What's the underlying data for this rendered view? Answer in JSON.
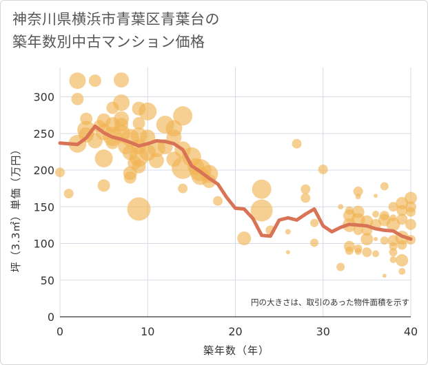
{
  "title": {
    "line1": "神奈川県横浜市青葉区青葉台の",
    "line2": "築年数別中古マンション価格"
  },
  "note": "円の大きさは、取引のあった物件面積を示す",
  "colors": {
    "bubble": "#f0b350",
    "line": "#d97356",
    "grid": "#d5dbe4",
    "axis": "#333333"
  },
  "chart_data": {
    "type": "scatter",
    "xlabel": "築年数（年）",
    "ylabel": "坪（3.3㎡）単価（万円）",
    "xlim": [
      0,
      40
    ],
    "ylim": [
      0,
      340
    ],
    "xticks": [
      "0",
      "10",
      "20",
      "30",
      "40"
    ],
    "yticks": [
      "0",
      "50",
      "100",
      "150",
      "200",
      "250",
      "300"
    ],
    "grid": true,
    "bubbles": [
      {
        "x": 0,
        "y": 197,
        "s": 7
      },
      {
        "x": 1,
        "y": 168,
        "s": 7
      },
      {
        "x": 2,
        "y": 322,
        "s": 12
      },
      {
        "x": 2,
        "y": 297,
        "s": 9
      },
      {
        "x": 2,
        "y": 236,
        "s": 13
      },
      {
        "x": 3,
        "y": 255,
        "s": 13
      },
      {
        "x": 3,
        "y": 248,
        "s": 11
      },
      {
        "x": 3,
        "y": 270,
        "s": 9
      },
      {
        "x": 4,
        "y": 322,
        "s": 9
      },
      {
        "x": 4,
        "y": 240,
        "s": 11
      },
      {
        "x": 4.5,
        "y": 260,
        "s": 9
      },
      {
        "x": 5,
        "y": 268,
        "s": 10
      },
      {
        "x": 5,
        "y": 252,
        "s": 12
      },
      {
        "x": 5,
        "y": 216,
        "s": 13
      },
      {
        "x": 5,
        "y": 179,
        "s": 9
      },
      {
        "x": 6,
        "y": 285,
        "s": 9
      },
      {
        "x": 6,
        "y": 262,
        "s": 11
      },
      {
        "x": 6,
        "y": 246,
        "s": 14
      },
      {
        "x": 6,
        "y": 238,
        "s": 10
      },
      {
        "x": 7,
        "y": 323,
        "s": 11
      },
      {
        "x": 7,
        "y": 292,
        "s": 12
      },
      {
        "x": 7,
        "y": 270,
        "s": 11
      },
      {
        "x": 7,
        "y": 262,
        "s": 10
      },
      {
        "x": 7,
        "y": 250,
        "s": 13
      },
      {
        "x": 7.5,
        "y": 232,
        "s": 11
      },
      {
        "x": 8,
        "y": 244,
        "s": 13
      },
      {
        "x": 8,
        "y": 224,
        "s": 11
      },
      {
        "x": 8,
        "y": 196,
        "s": 10
      },
      {
        "x": 8,
        "y": 190,
        "s": 9
      },
      {
        "x": 8.5,
        "y": 210,
        "s": 10
      },
      {
        "x": 9,
        "y": 284,
        "s": 10
      },
      {
        "x": 9,
        "y": 264,
        "s": 9
      },
      {
        "x": 9,
        "y": 247,
        "s": 12
      },
      {
        "x": 9,
        "y": 232,
        "s": 11
      },
      {
        "x": 9,
        "y": 218,
        "s": 14
      },
      {
        "x": 9,
        "y": 205,
        "s": 10
      },
      {
        "x": 9,
        "y": 147,
        "s": 17
      },
      {
        "x": 10,
        "y": 280,
        "s": 13
      },
      {
        "x": 10,
        "y": 245,
        "s": 11
      },
      {
        "x": 10,
        "y": 224,
        "s": 12
      },
      {
        "x": 11,
        "y": 230,
        "s": 13
      },
      {
        "x": 11,
        "y": 213,
        "s": 11
      },
      {
        "x": 12,
        "y": 262,
        "s": 13
      },
      {
        "x": 12,
        "y": 232,
        "s": 11
      },
      {
        "x": 13,
        "y": 257,
        "s": 12
      },
      {
        "x": 13,
        "y": 245,
        "s": 11
      },
      {
        "x": 13,
        "y": 215,
        "s": 11
      },
      {
        "x": 14,
        "y": 274,
        "s": 14
      },
      {
        "x": 14,
        "y": 228,
        "s": 12
      },
      {
        "x": 14,
        "y": 203,
        "s": 16
      },
      {
        "x": 14,
        "y": 175,
        "s": 7
      },
      {
        "x": 15,
        "y": 218,
        "s": 14
      },
      {
        "x": 15.5,
        "y": 205,
        "s": 12
      },
      {
        "x": 16,
        "y": 200,
        "s": 16
      },
      {
        "x": 16,
        "y": 192,
        "s": 13
      },
      {
        "x": 17,
        "y": 195,
        "s": 13
      },
      {
        "x": 17,
        "y": 185,
        "s": 10
      },
      {
        "x": 18,
        "y": 158,
        "s": 7
      },
      {
        "x": 21,
        "y": 107,
        "s": 10
      },
      {
        "x": 23,
        "y": 174,
        "s": 14
      },
      {
        "x": 23,
        "y": 145,
        "s": 16
      },
      {
        "x": 24,
        "y": 118,
        "s": 7
      },
      {
        "x": 26,
        "y": 116,
        "s": 4
      },
      {
        "x": 26,
        "y": 88,
        "s": 3
      },
      {
        "x": 27,
        "y": 236,
        "s": 7
      },
      {
        "x": 28,
        "y": 174,
        "s": 7
      },
      {
        "x": 28,
        "y": 162,
        "s": 7
      },
      {
        "x": 29,
        "y": 128,
        "s": 6
      },
      {
        "x": 29,
        "y": 101,
        "s": 6
      },
      {
        "x": 30,
        "y": 201,
        "s": 7
      },
      {
        "x": 32,
        "y": 150,
        "s": 4
      },
      {
        "x": 32,
        "y": 68,
        "s": 6
      },
      {
        "x": 33,
        "y": 145,
        "s": 6
      },
      {
        "x": 33,
        "y": 138,
        "s": 9
      },
      {
        "x": 33,
        "y": 125,
        "s": 10
      },
      {
        "x": 33,
        "y": 96,
        "s": 8
      },
      {
        "x": 33,
        "y": 90,
        "s": 6
      },
      {
        "x": 34,
        "y": 171,
        "s": 7
      },
      {
        "x": 34,
        "y": 164,
        "s": 4
      },
      {
        "x": 34,
        "y": 143,
        "s": 9
      },
      {
        "x": 34,
        "y": 132,
        "s": 10
      },
      {
        "x": 34,
        "y": 118,
        "s": 7
      },
      {
        "x": 34,
        "y": 93,
        "s": 6
      },
      {
        "x": 34,
        "y": 89,
        "s": 5
      },
      {
        "x": 35,
        "y": 130,
        "s": 9
      },
      {
        "x": 35,
        "y": 118,
        "s": 8
      },
      {
        "x": 35,
        "y": 106,
        "s": 9
      },
      {
        "x": 35,
        "y": 88,
        "s": 7
      },
      {
        "x": 36,
        "y": 165,
        "s": 3
      },
      {
        "x": 36,
        "y": 140,
        "s": 5
      },
      {
        "x": 36,
        "y": 126,
        "s": 8
      },
      {
        "x": 36,
        "y": 106,
        "s": 3
      },
      {
        "x": 36,
        "y": 86,
        "s": 5
      },
      {
        "x": 37,
        "y": 178,
        "s": 6
      },
      {
        "x": 37,
        "y": 138,
        "s": 7
      },
      {
        "x": 37,
        "y": 132,
        "s": 9
      },
      {
        "x": 37,
        "y": 104,
        "s": 6
      },
      {
        "x": 37,
        "y": 56,
        "s": 3
      },
      {
        "x": 38,
        "y": 150,
        "s": 7
      },
      {
        "x": 38,
        "y": 135,
        "s": 5
      },
      {
        "x": 38,
        "y": 126,
        "s": 10
      },
      {
        "x": 38,
        "y": 104,
        "s": 8
      },
      {
        "x": 38,
        "y": 96,
        "s": 6
      },
      {
        "x": 38,
        "y": 88,
        "s": 6
      },
      {
        "x": 38,
        "y": 78,
        "s": 5
      },
      {
        "x": 39,
        "y": 155,
        "s": 9
      },
      {
        "x": 39,
        "y": 145,
        "s": 8
      },
      {
        "x": 39,
        "y": 133,
        "s": 8
      },
      {
        "x": 39,
        "y": 108,
        "s": 10
      },
      {
        "x": 39,
        "y": 98,
        "s": 7
      },
      {
        "x": 39,
        "y": 77,
        "s": 9
      },
      {
        "x": 39,
        "y": 62,
        "s": 5
      },
      {
        "x": 40,
        "y": 162,
        "s": 9
      },
      {
        "x": 40,
        "y": 150,
        "s": 8
      },
      {
        "x": 40,
        "y": 143,
        "s": 7
      },
      {
        "x": 40,
        "y": 126,
        "s": 8
      },
      {
        "x": 40,
        "y": 105,
        "s": 7
      }
    ],
    "line": {
      "x": [
        0,
        1,
        2,
        3,
        4,
        5,
        6,
        7,
        8,
        9,
        10,
        11,
        12,
        13,
        14,
        15,
        16,
        17,
        18,
        19,
        20,
        21,
        22,
        23,
        24,
        25,
        26,
        27,
        28,
        29,
        30,
        31,
        32,
        33,
        34,
        35,
        36,
        37,
        38,
        39,
        40
      ],
      "y": [
        237,
        236,
        235,
        244,
        260,
        251,
        245,
        242,
        238,
        233,
        236,
        240,
        239,
        236,
        228,
        206,
        198,
        189,
        181,
        163,
        148,
        147,
        134,
        111,
        110,
        132,
        135,
        132,
        140,
        147,
        124,
        116,
        122,
        126,
        125,
        124,
        120,
        118,
        117,
        110,
        106
      ]
    }
  }
}
